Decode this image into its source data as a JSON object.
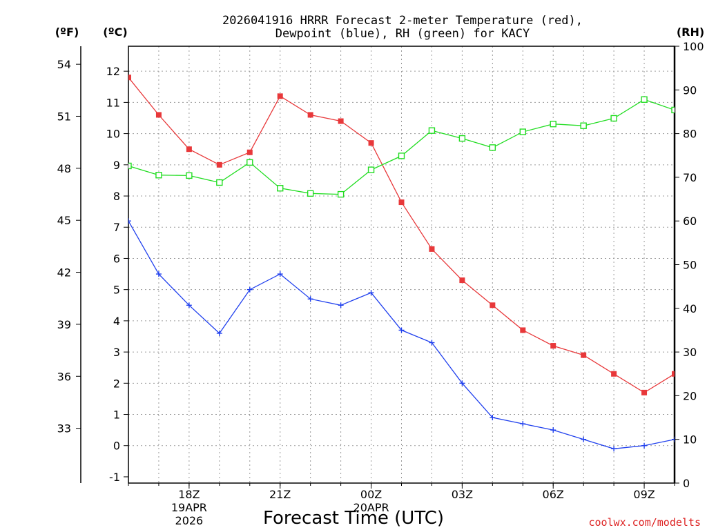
{
  "chart_data": {
    "type": "line",
    "title_line1": "2026041916 HRRR Forecast 2-meter Temperature (red),",
    "title_line2": "Dewpoint (blue), RH (green) for KACY",
    "xlabel": "Forecast Time (UTC)",
    "credit": "coolwx.com/modelts",
    "units": {
      "fahrenheit": "(ºF)",
      "celsius": "(ºC)",
      "rh": "(RH)"
    },
    "colors": {
      "temperature": "#e8383a",
      "dewpoint": "#2040ee",
      "rh": "#22dd22",
      "credit": "#dd2222"
    },
    "hours": [
      16,
      17,
      18,
      19,
      20,
      21,
      22,
      23,
      24,
      25,
      26,
      27,
      28,
      29,
      30,
      31,
      32,
      33,
      34
    ],
    "x_range": [
      16,
      34
    ],
    "celsius_range": [
      -1.2,
      12.8
    ],
    "rh_range": [
      0,
      100
    ],
    "x_ticks": [
      {
        "hour": 18,
        "label": "18Z",
        "date": "19APR",
        "year": "2026"
      },
      {
        "hour": 21,
        "label": "21Z"
      },
      {
        "hour": 24,
        "label": "00Z",
        "date": "20APR"
      },
      {
        "hour": 27,
        "label": "03Z"
      },
      {
        "hour": 30,
        "label": "06Z"
      },
      {
        "hour": 33,
        "label": "09Z"
      }
    ],
    "celsius_ticks": [
      "-1",
      "0",
      "1",
      "2",
      "3",
      "4",
      "5",
      "6",
      "7",
      "8",
      "9",
      "10",
      "11",
      "12"
    ],
    "fahrenheit_ticks": [
      "33",
      "36",
      "39",
      "42",
      "45",
      "48",
      "51",
      "54"
    ],
    "rh_ticks": [
      "0",
      "10",
      "20",
      "30",
      "40",
      "50",
      "60",
      "70",
      "80",
      "90",
      "100"
    ],
    "series": [
      {
        "name": "Temperature",
        "unit": "C",
        "marker": "square-filled",
        "values": [
          11.8,
          10.6,
          9.5,
          9.0,
          9.4,
          11.2,
          10.6,
          10.4,
          9.7,
          7.8,
          6.3,
          5.3,
          4.5,
          3.7,
          3.2,
          2.9,
          2.3,
          1.7,
          2.3
        ]
      },
      {
        "name": "Dewpoint",
        "unit": "C",
        "marker": "plus",
        "values": [
          7.2,
          5.5,
          4.5,
          3.6,
          5.0,
          5.5,
          4.7,
          4.5,
          4.9,
          3.7,
          3.3,
          2.0,
          0.9,
          0.7,
          0.5,
          0.2,
          -0.1,
          0.0,
          0.2
        ]
      },
      {
        "name": "RH",
        "unit": "%",
        "marker": "square-open",
        "values": [
          72.6,
          70.5,
          70.4,
          68.8,
          73.4,
          67.5,
          66.3,
          66.1,
          71.7,
          74.9,
          80.7,
          78.9,
          76.8,
          80.4,
          82.2,
          81.8,
          83.5,
          87.8,
          85.4
        ]
      }
    ]
  }
}
